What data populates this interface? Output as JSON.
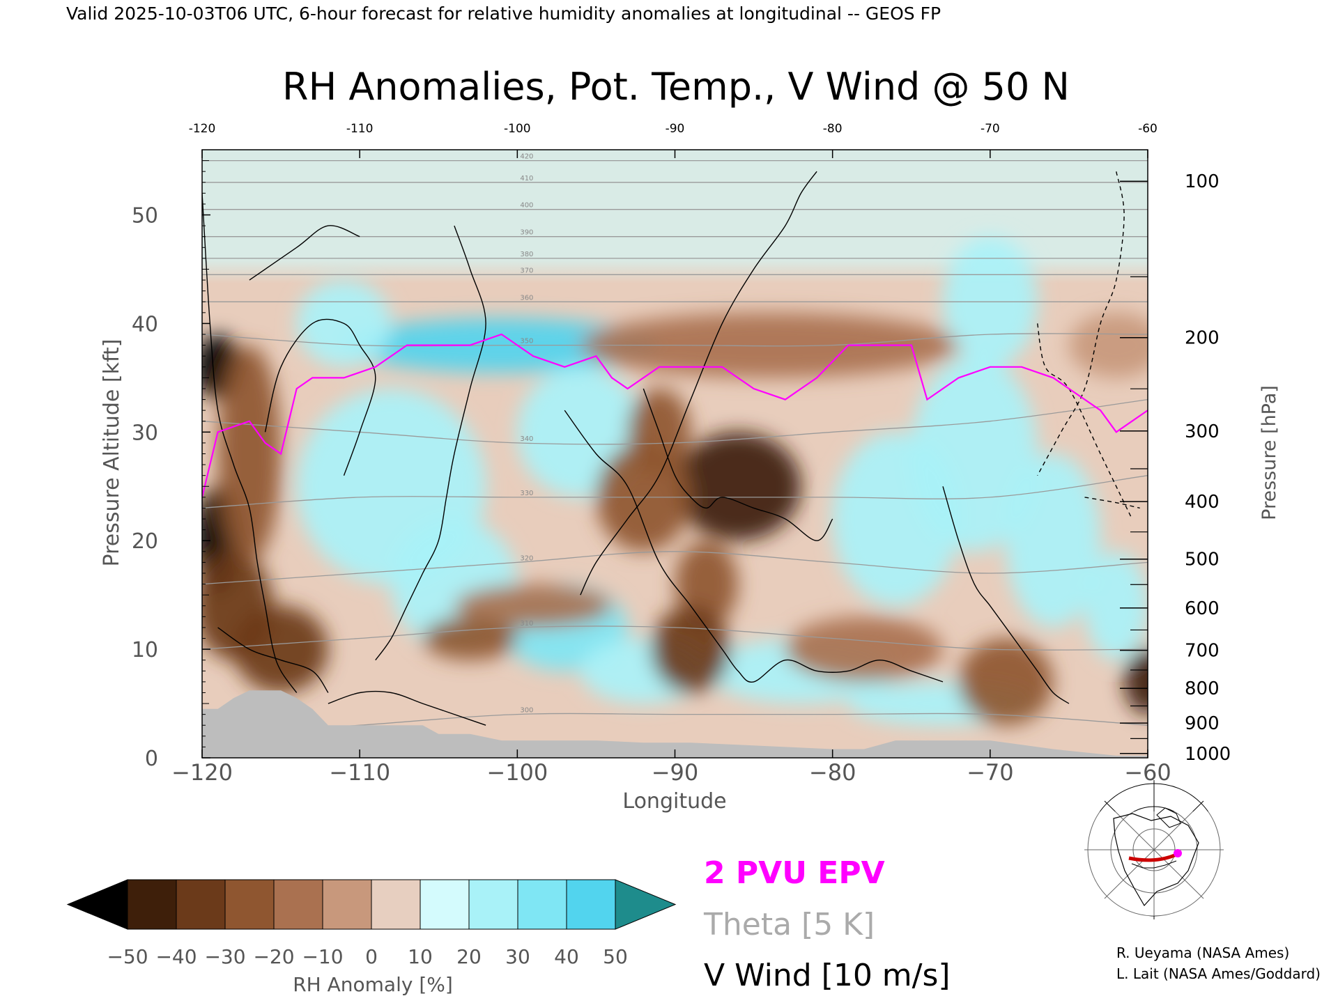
{
  "header": {
    "valid_line": "Valid 2025-10-03T06 UTC, 6-hour forecast for relative humidity anomalies at longitudinal -- GEOS FP"
  },
  "chart_data": {
    "type": "heatmap",
    "title": "RH Anomalies, Pot. Temp., V Wind @ 50 N",
    "xlabel": "Longitude",
    "ylabel_left": "Pressure Altitude [kft]",
    "ylabel_right": "Pressure [hPa]",
    "xlim": [
      -120,
      -60
    ],
    "ylim": [
      0,
      56
    ],
    "x_ticks": [
      -120,
      -110,
      -100,
      -90,
      -80,
      -70,
      -60
    ],
    "x_tick_labels": [
      "−120",
      "−110",
      "−100",
      "−90",
      "−80",
      "−70",
      "−60"
    ],
    "top_tick_labels": [
      "-120",
      "-110",
      "-100",
      "-90",
      "-80",
      "-70",
      "-60"
    ],
    "y_ticks": [
      0,
      10,
      20,
      30,
      40,
      50
    ],
    "y_tick_labels": [
      "0",
      "10",
      "20",
      "30",
      "40",
      "50"
    ],
    "pressure_ticks": [
      {
        "hpa": "1000",
        "kft": 0.4
      },
      {
        "hpa": "900",
        "kft": 3.2
      },
      {
        "hpa": "800",
        "kft": 6.4
      },
      {
        "hpa": "700",
        "kft": 9.9
      },
      {
        "hpa": "600",
        "kft": 13.8
      },
      {
        "hpa": "500",
        "kft": 18.3
      },
      {
        "hpa": "400",
        "kft": 23.6
      },
      {
        "hpa": "300",
        "kft": 30.1
      },
      {
        "hpa": "200",
        "kft": 38.7
      },
      {
        "hpa": "100",
        "kft": 53.1
      }
    ],
    "colorbar": {
      "label": "RH Anomaly [%]",
      "levels": [
        -50,
        -40,
        -30,
        -20,
        -10,
        0,
        10,
        20,
        30,
        40,
        50
      ],
      "tick_labels": [
        "−50",
        "−40",
        "−30",
        "−20",
        "−10",
        "0",
        "10",
        "20",
        "30",
        "40",
        "50"
      ],
      "colors": [
        "#3e1f0a",
        "#6b3a1a",
        "#8f5630",
        "#aa7150",
        "#c8987c",
        "#e7cfc0",
        "#d4fbfd",
        "#a9f2f8",
        "#7fe6f4",
        "#52d4ee",
        "#2bbcd9",
        "#1297b7"
      ],
      "under_color": "#000000",
      "over_color": "#1e8c8c"
    },
    "rh_field": {
      "background_upper": "#d9ebe6",
      "background_mid": "#e8cdbc",
      "blobs": [
        {
          "x": -101,
          "y": 38,
          "rx": 10,
          "ry": 2.5,
          "v": 45
        },
        {
          "x": -108,
          "y": 25,
          "rx": 6,
          "ry": 9,
          "v": 20
        },
        {
          "x": -104,
          "y": 16,
          "rx": 4,
          "ry": 6,
          "v": 20
        },
        {
          "x": -97,
          "y": 12,
          "rx": 4,
          "ry": 4,
          "v": 30
        },
        {
          "x": -92,
          "y": 8,
          "rx": 4,
          "ry": 3,
          "v": 25
        },
        {
          "x": -96,
          "y": 30,
          "rx": 4,
          "ry": 6,
          "v": 20
        },
        {
          "x": -76,
          "y": 22,
          "rx": 4,
          "ry": 8,
          "v": 25
        },
        {
          "x": -71,
          "y": 28,
          "rx": 4,
          "ry": 9,
          "v": 20
        },
        {
          "x": -82,
          "y": 8,
          "rx": 6,
          "ry": 3,
          "v": 25
        },
        {
          "x": -73,
          "y": 5,
          "rx": 6,
          "ry": 2,
          "v": 20
        },
        {
          "x": -66,
          "y": 20,
          "rx": 3,
          "ry": 8,
          "v": 20
        },
        {
          "x": -62,
          "y": 14,
          "rx": 2,
          "ry": 5,
          "v": 25
        },
        {
          "x": -111,
          "y": 40,
          "rx": 3,
          "ry": 4,
          "v": 20
        },
        {
          "x": -70,
          "y": 42,
          "rx": 3,
          "ry": 6,
          "v": 20
        },
        {
          "x": -86,
          "y": 25,
          "rx": 4,
          "ry": 5,
          "v": -45
        },
        {
          "x": -92,
          "y": 24,
          "rx": 3,
          "ry": 5,
          "v": -30
        },
        {
          "x": -91,
          "y": 30,
          "rx": 2,
          "ry": 4,
          "v": -30
        },
        {
          "x": -88,
          "y": 16,
          "rx": 2,
          "ry": 4,
          "v": -30
        },
        {
          "x": -89,
          "y": 10,
          "rx": 2.5,
          "ry": 4,
          "v": -35
        },
        {
          "x": -99,
          "y": 14,
          "rx": 5,
          "ry": 2,
          "v": -20
        },
        {
          "x": -103,
          "y": 11,
          "rx": 3,
          "ry": 2,
          "v": -25
        },
        {
          "x": -119,
          "y": 20,
          "rx": 1.5,
          "ry": 5,
          "v": -55
        },
        {
          "x": -119,
          "y": 36,
          "rx": 1.5,
          "ry": 3,
          "v": -55
        },
        {
          "x": -118,
          "y": 14,
          "rx": 2.5,
          "ry": 5,
          "v": -40
        },
        {
          "x": -115,
          "y": 10,
          "rx": 3,
          "ry": 4,
          "v": -35
        },
        {
          "x": -117,
          "y": 28,
          "rx": 2,
          "ry": 10,
          "v": -30
        },
        {
          "x": -78,
          "y": 10,
          "rx": 5,
          "ry": 3,
          "v": -20
        },
        {
          "x": -69,
          "y": 7,
          "rx": 3,
          "ry": 4,
          "v": -25
        },
        {
          "x": -60,
          "y": 7,
          "rx": 1.5,
          "ry": 3,
          "v": -45
        },
        {
          "x": -84,
          "y": 38,
          "rx": 12,
          "ry": 3,
          "v": -15
        },
        {
          "x": -62,
          "y": 38,
          "rx": 3,
          "ry": 3,
          "v": -10
        }
      ]
    },
    "theta_contours": [
      {
        "level": "300",
        "y": [
          2,
          3,
          4,
          4,
          4,
          4,
          3
        ]
      },
      {
        "level": "310",
        "y": [
          10,
          11,
          12,
          12,
          11,
          10,
          10
        ]
      },
      {
        "level": "320",
        "y": [
          16,
          17,
          18,
          19,
          18,
          17,
          18
        ]
      },
      {
        "level": "330",
        "y": [
          23,
          24,
          24,
          24,
          24,
          24,
          26
        ]
      },
      {
        "level": "340",
        "y": [
          31,
          30,
          29,
          29,
          30,
          31,
          33
        ]
      },
      {
        "level": "350",
        "y": [
          39,
          38,
          38,
          38,
          38,
          39,
          39
        ]
      },
      {
        "level": "360",
        "y": [
          42,
          42,
          42,
          42,
          42,
          42,
          42
        ]
      },
      {
        "level": "370",
        "y": [
          44.5,
          44.5,
          44.5,
          44.5,
          44.5,
          44.5,
          44.5
        ]
      },
      {
        "level": "380",
        "y": [
          46,
          46,
          46,
          46,
          46,
          46,
          46
        ]
      },
      {
        "level": "390",
        "y": [
          48,
          48,
          48,
          48,
          48,
          48,
          48
        ]
      },
      {
        "level": "400",
        "y": [
          50.5,
          50.5,
          50.5,
          50.5,
          50.5,
          50.5,
          50.5
        ]
      },
      {
        "level": "410",
        "y": [
          53,
          53,
          53,
          53,
          53,
          53,
          53
        ]
      },
      {
        "level": "420",
        "y": [
          55,
          55,
          55,
          55,
          55,
          55,
          55
        ]
      }
    ],
    "epv_2pvu": {
      "x": [
        -120,
        -119,
        -117,
        -116,
        -115,
        -114,
        -113,
        -111,
        -109,
        -107,
        -105,
        -103,
        -101,
        -99,
        -97,
        -95,
        -94,
        -93,
        -91,
        -89,
        -87,
        -85,
        -83,
        -81,
        -79,
        -77,
        -75,
        -74,
        -72,
        -70,
        -68,
        -66,
        -65,
        -63,
        -62,
        -61,
        -60
      ],
      "y": [
        24,
        30,
        31,
        29,
        28,
        34,
        35,
        35,
        36,
        38,
        38,
        38,
        39,
        37,
        36,
        37,
        35,
        34,
        36,
        36,
        36,
        34,
        33,
        35,
        38,
        38,
        38,
        33,
        35,
        36,
        36,
        35,
        34,
        32,
        30,
        31,
        32
      ]
    },
    "vwind_zero": [
      {
        "x": [
          -120,
          -119.5,
          -119,
          -118,
          -117,
          -116.5,
          -116,
          -115.5,
          -115,
          -114
        ],
        "y": [
          52,
          40,
          32,
          27,
          23,
          18,
          14,
          10,
          8,
          6
        ]
      },
      {
        "x": [
          -104,
          -103,
          -102,
          -103,
          -104,
          -104.5,
          -105,
          -106,
          -107,
          -108,
          -109
        ],
        "y": [
          49,
          45,
          40,
          34,
          28,
          24,
          20,
          17,
          14,
          11,
          9
        ]
      },
      {
        "x": [
          -96,
          -95,
          -93,
          -91,
          -89,
          -87,
          -85,
          -83,
          -82,
          -81
        ],
        "y": [
          15,
          18,
          22,
          26,
          33,
          40,
          45,
          49,
          52,
          54
        ]
      },
      {
        "x": [
          -92,
          -91,
          -90,
          -89,
          -88,
          -87,
          -85,
          -83,
          -81,
          -80
        ],
        "y": [
          34,
          30,
          26,
          24,
          23,
          24,
          23,
          22,
          20,
          22
        ]
      },
      {
        "x": [
          -97,
          -95,
          -93,
          -91,
          -89,
          -87,
          -86,
          -85,
          -83,
          -81,
          -79,
          -77,
          -75,
          -73
        ],
        "y": [
          32,
          28,
          25,
          18,
          14,
          10,
          8,
          7,
          9,
          8,
          8,
          9,
          8,
          7
        ]
      },
      {
        "x": [
          -73,
          -72,
          -71,
          -70,
          -69,
          -68,
          -67,
          -66,
          -65
        ],
        "y": [
          25,
          20,
          16,
          14,
          12,
          10,
          8,
          6,
          5
        ]
      },
      {
        "x": [
          -119,
          -117,
          -115,
          -113,
          -112
        ],
        "y": [
          12,
          10,
          9,
          8,
          6
        ]
      },
      {
        "x": [
          -112,
          -110,
          -108,
          -106,
          -104,
          -102
        ],
        "y": [
          5,
          6,
          6,
          5,
          4,
          3
        ]
      }
    ],
    "vwind_ten": [
      {
        "x": [
          -116,
          -115,
          -113,
          -111,
          -110,
          -109,
          -110,
          -111
        ],
        "y": [
          30,
          36,
          40,
          40,
          38,
          35,
          30,
          26
        ],
        "dashed": false
      },
      {
        "x": [
          -117,
          -114,
          -112,
          -110
        ],
        "y": [
          44,
          47,
          49,
          48
        ],
        "dashed": false
      },
      {
        "x": [
          -62,
          -61.5,
          -62,
          -63,
          -64,
          -65.5,
          -67
        ],
        "y": [
          54,
          50,
          44,
          40,
          34,
          30,
          26
        ],
        "dashed": true
      },
      {
        "x": [
          -67,
          -66.5,
          -65,
          -63,
          -61
        ],
        "y": [
          40,
          36,
          34,
          28,
          22
        ],
        "dashed": true
      },
      {
        "x": [
          -64,
          -62,
          -60.5
        ],
        "y": [
          24,
          23.5,
          23
        ],
        "dashed": true
      }
    ],
    "topography": {
      "x": [
        -120,
        -120,
        -119,
        -118,
        -117,
        -116,
        -115,
        -114,
        -113,
        -112,
        -110,
        -108,
        -106,
        -105,
        -103,
        -101,
        -98,
        -95,
        -92,
        -89,
        -86,
        -83,
        -80,
        -78,
        -76,
        -74,
        -72,
        -70,
        -68,
        -66,
        -64,
        -62,
        -60,
        -60
      ],
      "y": [
        0,
        4.5,
        4.5,
        5.5,
        6.2,
        6.2,
        6.2,
        5.5,
        4.5,
        3.0,
        3.0,
        3.0,
        3.0,
        2.2,
        2.2,
        1.6,
        1.6,
        1.6,
        1.4,
        1.4,
        1.2,
        1.0,
        0.8,
        0.8,
        1.6,
        1.6,
        1.6,
        1.6,
        1.2,
        0.8,
        0.5,
        0.2,
        0.2,
        0
      ],
      "color": "#bdbdbd"
    }
  },
  "legend": {
    "epv": "2 PVU EPV",
    "epv_color": "#ff00ff",
    "theta": "Theta [5 K]",
    "theta_color": "#aaaaaa",
    "vwind": "V Wind [10 m/s]"
  },
  "credits": {
    "line1": "R. Ueyama (NASA Ames)",
    "line2": "L. Lait (NASA Ames/Goddard)"
  },
  "inset_map": {
    "icon": "north-america-polar-map-icon",
    "track_color": "#cc0000",
    "marker_color": "#ff00ff"
  }
}
